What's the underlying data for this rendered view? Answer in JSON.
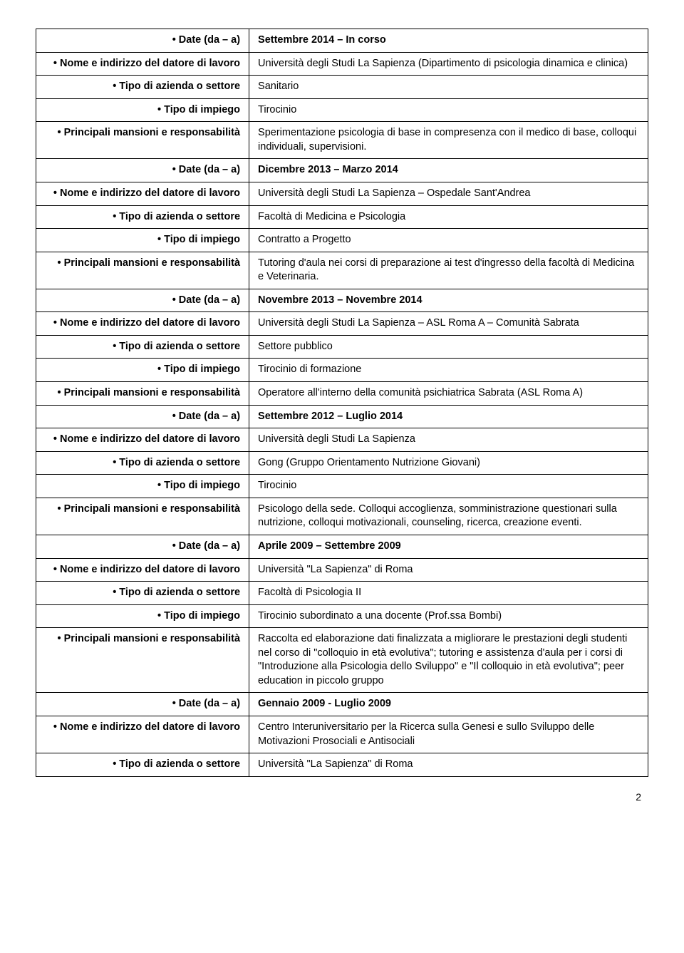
{
  "rows": [
    {
      "bullet": true,
      "label_bold": true,
      "label": "Date (da – a)",
      "value_bold": true,
      "value": "Settembre 2014 – In corso"
    },
    {
      "bullet": true,
      "label_bold": true,
      "label": "Nome e indirizzo del datore di lavoro",
      "value_bold": false,
      "value": "Università degli Studi La Sapienza (Dipartimento di psicologia dinamica e clinica)"
    },
    {
      "bullet": true,
      "label_bold": true,
      "label": "Tipo di azienda o settore",
      "value_bold": false,
      "value": "Sanitario"
    },
    {
      "bullet": true,
      "label_bold": true,
      "label": "Tipo di impiego",
      "value_bold": false,
      "value": "Tirocinio"
    },
    {
      "bullet": true,
      "label_bold": true,
      "label": "Principali mansioni e responsabilità",
      "value_bold": false,
      "value": "Sperimentazione psicologia di base in compresenza con il medico di base, colloqui individuali, supervisioni."
    },
    {
      "bullet": true,
      "label_bold": true,
      "label": "Date (da – a)",
      "value_bold": true,
      "value": "Dicembre 2013 – Marzo 2014"
    },
    {
      "bullet": true,
      "label_bold": true,
      "label": "Nome e indirizzo del datore di lavoro",
      "value_bold": false,
      "value": "Università degli Studi La Sapienza – Ospedale Sant'Andrea"
    },
    {
      "bullet": true,
      "label_bold": true,
      "label": "Tipo di azienda o settore",
      "value_bold": false,
      "value": "Facoltà di Medicina e Psicologia"
    },
    {
      "bullet": true,
      "label_bold": true,
      "label": "Tipo di impiego",
      "value_bold": false,
      "value": "Contratto a Progetto"
    },
    {
      "bullet": true,
      "label_bold": true,
      "label": "Principali mansioni e responsabilità",
      "value_bold": false,
      "value": "Tutoring d'aula nei corsi di preparazione ai test d'ingresso della facoltà di Medicina e Veterinaria."
    },
    {
      "bullet": true,
      "label_bold": true,
      "label": "Date (da – a)",
      "value_bold": true,
      "value": "Novembre 2013 – Novembre 2014"
    },
    {
      "bullet": true,
      "label_bold": true,
      "label": "Nome e indirizzo del datore di lavoro",
      "value_bold": false,
      "value": "Università degli Studi La Sapienza – ASL Roma A – Comunità Sabrata"
    },
    {
      "bullet": true,
      "label_bold": true,
      "label": "Tipo di azienda o settore",
      "value_bold": false,
      "value": "Settore pubblico"
    },
    {
      "bullet": true,
      "label_bold": true,
      "label": "Tipo di impiego",
      "value_bold": false,
      "value": "Tirocinio di formazione"
    },
    {
      "bullet": true,
      "label_bold": true,
      "label": "Principali mansioni e responsabilità",
      "value_bold": false,
      "value": "Operatore all'interno della comunità psichiatrica Sabrata (ASL Roma A)"
    },
    {
      "bullet": true,
      "label_bold": true,
      "label": "Date (da – a)",
      "value_bold": true,
      "value": "Settembre 2012 – Luglio 2014"
    },
    {
      "bullet": true,
      "label_bold": true,
      "label": "Nome e indirizzo del datore di lavoro",
      "value_bold": false,
      "value": "Università degli Studi La Sapienza"
    },
    {
      "bullet": true,
      "label_bold": true,
      "label": "Tipo di azienda o settore",
      "value_bold": false,
      "value": "Gong (Gruppo Orientamento Nutrizione Giovani)"
    },
    {
      "bullet": true,
      "label_bold": true,
      "label": "Tipo di impiego",
      "value_bold": false,
      "value": "Tirocinio"
    },
    {
      "bullet": true,
      "label_bold": true,
      "label": "Principali mansioni e responsabilità",
      "value_bold": false,
      "value": "Psicologo della sede. Colloqui accoglienza, somministrazione questionari sulla nutrizione, colloqui motivazionali, counseling, ricerca, creazione eventi."
    },
    {
      "bullet": true,
      "label_bold": true,
      "label": "Date (da – a)",
      "value_bold": true,
      "value": "Aprile 2009 – Settembre 2009"
    },
    {
      "bullet": true,
      "label_bold": true,
      "label": "Nome e indirizzo del datore di lavoro",
      "value_bold": false,
      "value": "Università \"La Sapienza\" di Roma"
    },
    {
      "bullet": true,
      "label_bold": true,
      "label": "Tipo di azienda o settore",
      "value_bold": false,
      "value": "Facoltà di Psicologia II"
    },
    {
      "bullet": true,
      "label_bold": true,
      "label": "Tipo di impiego",
      "value_bold": false,
      "value": "Tirocinio subordinato a una docente (Prof.ssa Bombi)"
    },
    {
      "bullet": true,
      "label_bold": true,
      "label": "Principali mansioni e responsabilità",
      "value_bold": false,
      "value": "Raccolta ed elaborazione dati finalizzata a migliorare le prestazioni degli studenti nel corso di \"colloquio in età evolutiva\"; tutoring e assistenza d'aula per i corsi di \"Introduzione alla Psicologia dello Sviluppo\" e \"Il colloquio in età evolutiva\"; peer education in piccolo gruppo"
    },
    {
      "bullet": true,
      "label_bold": true,
      "label": "Date (da – a)",
      "value_bold": true,
      "value": "Gennaio 2009 - Luglio 2009"
    },
    {
      "bullet": true,
      "label_bold": true,
      "label": "Nome e indirizzo del datore di lavoro",
      "value_bold": false,
      "value": "Centro Interuniversitario per la Ricerca sulla Genesi e sullo Sviluppo delle Motivazioni Prosociali e Antisociali"
    },
    {
      "bullet": true,
      "label_bold": true,
      "label": "Tipo di azienda o settore",
      "value_bold": false,
      "value": "Università \"La Sapienza\" di Roma"
    }
  ],
  "page_number": "2"
}
